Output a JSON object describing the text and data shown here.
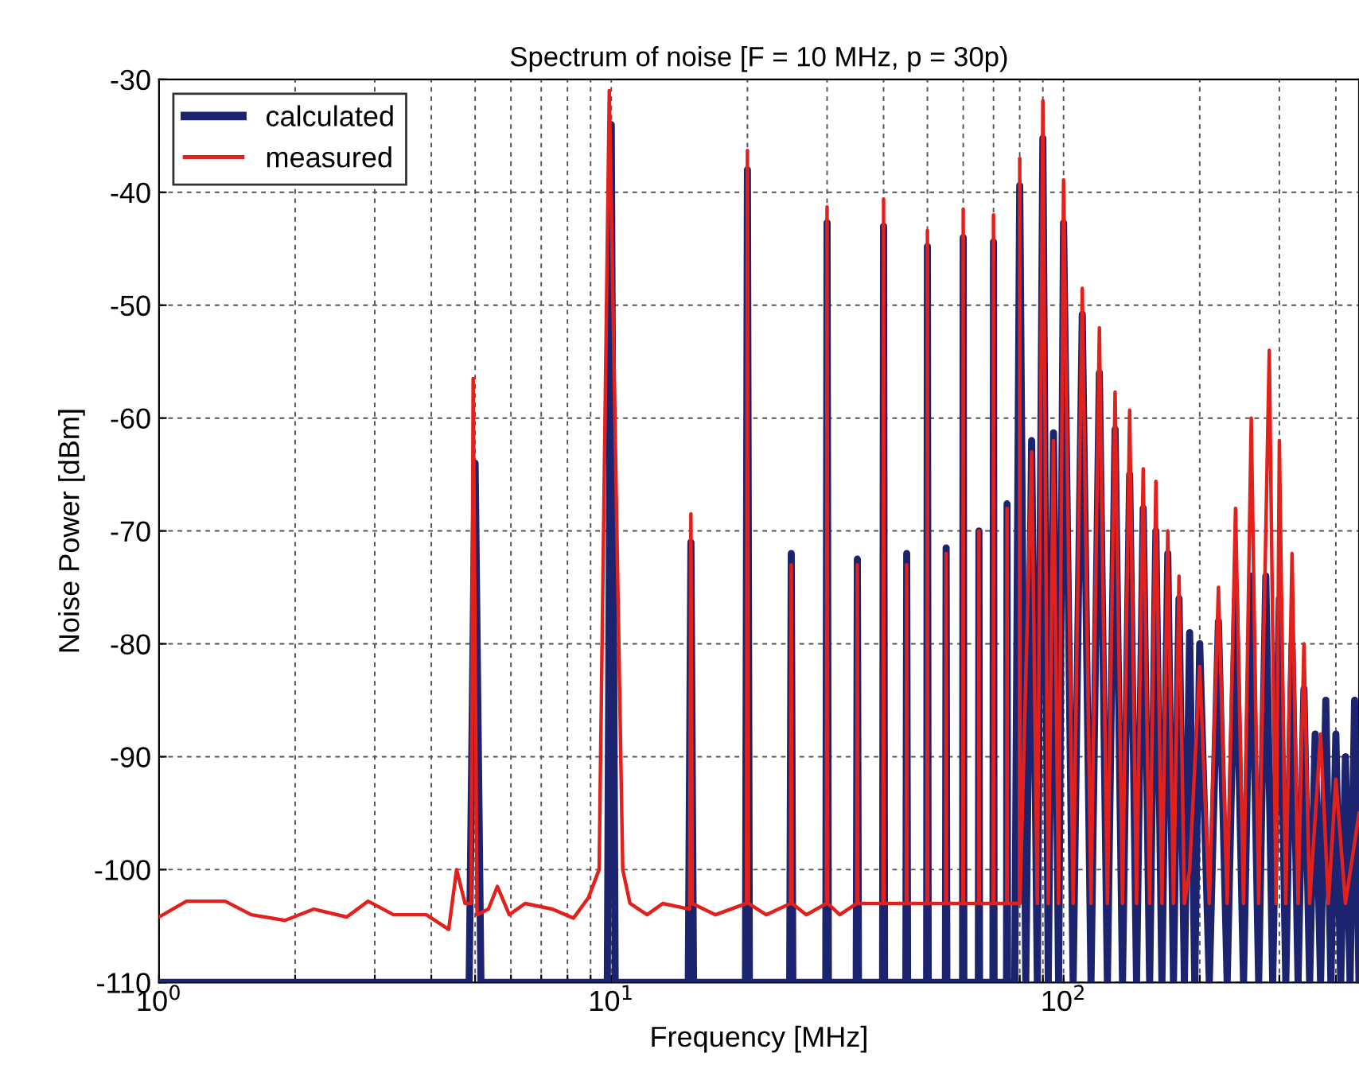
{
  "chart_data": {
    "type": "line",
    "title": "Spectrum of noise [F = 10 MHz, p = 30p)",
    "xlabel": "Frequency [MHz]",
    "ylabel": "Noise Power [dBm]",
    "log": "x",
    "xlim": [
      1,
      450
    ],
    "ylim": [
      -110,
      -30
    ],
    "xticks": [
      {
        "value": 1,
        "label": "10$^{0}$"
      },
      {
        "value": 2,
        "label": null
      },
      {
        "value": 3,
        "label": null
      },
      {
        "value": 4,
        "label": null
      },
      {
        "value": 5,
        "label": null
      },
      {
        "value": 6,
        "label": null
      },
      {
        "value": 7,
        "label": null
      },
      {
        "value": 8,
        "label": null
      },
      {
        "value": 9,
        "label": null
      },
      {
        "value": 10,
        "label": "10$^{1}$"
      },
      {
        "value": 20,
        "label": null
      },
      {
        "value": 30,
        "label": null
      },
      {
        "value": 40,
        "label": null
      },
      {
        "value": 50,
        "label": null
      },
      {
        "value": 60,
        "label": null
      },
      {
        "value": 70,
        "label": null
      },
      {
        "value": 80,
        "label": null
      },
      {
        "value": 90,
        "label": null
      },
      {
        "value": 100,
        "label": "10$^{2}$"
      },
      {
        "value": 200,
        "label": null
      },
      {
        "value": 300,
        "label": null
      },
      {
        "value": 400,
        "label": null
      }
    ],
    "yticks": [
      -110,
      -100,
      -90,
      -80,
      -70,
      -60,
      -50,
      -40,
      -30
    ],
    "grid": true,
    "legend": "top left",
    "line_style": "solid",
    "marker": "none",
    "series": [
      {
        "name": "calculated",
        "color": "#1c2470",
        "x": [
          1,
          4.85,
          5,
          5.15,
          9.8,
          10,
          10.2,
          14.8,
          15,
          15.2,
          19.8,
          20,
          20.2,
          24.8,
          25,
          25.2,
          29.8,
          30,
          30.2,
          34.8,
          35,
          35.2,
          39.8,
          40,
          40.2,
          44.8,
          45,
          45.2,
          49.8,
          50,
          50.2,
          54.8,
          55,
          55.2,
          59.8,
          60,
          60.2,
          64.8,
          65,
          65.2,
          69.8,
          70,
          70.2,
          74.8,
          75,
          75.2,
          78,
          80,
          82.5,
          85,
          87.5,
          90,
          92.5,
          95,
          97.5,
          100,
          105,
          110,
          115,
          120,
          125,
          130,
          135,
          140,
          145,
          150,
          155,
          160,
          165,
          170,
          175,
          180,
          185,
          190,
          195,
          200,
          210,
          220,
          230,
          240,
          250,
          260,
          270,
          280,
          290,
          300,
          310,
          320,
          330,
          340,
          350,
          360,
          370,
          380,
          390,
          400,
          410,
          420,
          430,
          440,
          450
        ],
        "values": [
          -110,
          -110,
          -64,
          -110,
          -110,
          -34,
          -110,
          -110,
          -71,
          -110,
          -110,
          -38,
          -110,
          -110,
          -72,
          -110,
          -110,
          -42.7,
          -110,
          -110,
          -72.5,
          -110,
          -110,
          -43,
          -110,
          -110,
          -72,
          -110,
          -110,
          -44.8,
          -110,
          -110,
          -71.5,
          -110,
          -110,
          -44,
          -110,
          -110,
          -70,
          -110,
          -110,
          -44.4,
          -110,
          -110,
          -67.6,
          -110,
          -110,
          -39.4,
          -110,
          -62,
          -110,
          -35.2,
          -110,
          -61.3,
          -110,
          -42.7,
          -110,
          -50.8,
          -110,
          -56,
          -110,
          -61,
          -110,
          -65,
          -110,
          -68,
          -110,
          -70,
          -110,
          -72,
          -110,
          -76,
          -110,
          -79,
          -110,
          -80,
          -110,
          -78,
          -110,
          -76,
          -110,
          -74,
          -110,
          -74,
          -110,
          -76,
          -110,
          -80,
          -110,
          -84,
          -110,
          -88,
          -110,
          -85,
          -110,
          -88,
          -110,
          -90,
          -110,
          -85,
          -110
        ]
      },
      {
        "name": "measured",
        "color": "#e3211c",
        "x": [
          1,
          1.15,
          1.4,
          1.6,
          1.9,
          2.2,
          2.6,
          2.9,
          3.3,
          3.9,
          4.37,
          4.55,
          4.75,
          4.9,
          4.95,
          5.05,
          5.35,
          5.6,
          5.95,
          6.45,
          7.4,
          8.25,
          8.9,
          9.4,
          9.9,
          10.6,
          11,
          12,
          13,
          14.9,
          15,
          15.1,
          17,
          19.9,
          20,
          20.1,
          22,
          24.9,
          25,
          25.1,
          27,
          29.9,
          30,
          30.1,
          32,
          34.9,
          35,
          35.1,
          39.9,
          40,
          40.1,
          44.9,
          45,
          45.1,
          49.9,
          50,
          50.1,
          54.9,
          55,
          55.1,
          59.9,
          60,
          60.1,
          64.9,
          65,
          65.1,
          69.9,
          70,
          70.1,
          74.9,
          75,
          75.1,
          79.9,
          80,
          80.1,
          85,
          87.5,
          90,
          92.5,
          95,
          97.5,
          100,
          105,
          110,
          115,
          120,
          125,
          130,
          135,
          140,
          145,
          150,
          155,
          160,
          165,
          170,
          175,
          180,
          185,
          190,
          200,
          210,
          220,
          230,
          240,
          250,
          260,
          270,
          285,
          295,
          300,
          310,
          320,
          330,
          340,
          350,
          370,
          385,
          400,
          420,
          450
        ],
        "values": [
          -104.2,
          -102.8,
          -102.8,
          -104,
          -104.5,
          -103.5,
          -104.2,
          -102.8,
          -104,
          -104,
          -105.3,
          -100,
          -103,
          -103,
          -56.5,
          -104,
          -103.5,
          -101.5,
          -104,
          -103,
          -103.5,
          -104.3,
          -102.5,
          -100,
          -31,
          -100,
          -103,
          -104,
          -103,
          -103.5,
          -68.5,
          -103,
          -104,
          -103,
          -36.3,
          -103,
          -104,
          -103,
          -73,
          -103,
          -104,
          -103,
          -41.3,
          -103,
          -104,
          -103,
          -73,
          -103,
          -103,
          -40.6,
          -103,
          -103,
          -73,
          -103,
          -103,
          -43.4,
          -103,
          -103,
          -72,
          -103,
          -103,
          -41.5,
          -103,
          -103,
          -70,
          -103,
          -103,
          -42,
          -103,
          -103,
          -68,
          -103,
          -103,
          -37,
          -103,
          -63,
          -103,
          -31.9,
          -103,
          -62,
          -103,
          -38.9,
          -103,
          -48.5,
          -103,
          -52,
          -103,
          -57.7,
          -103,
          -59.3,
          -103,
          -64.5,
          -103,
          -65.6,
          -103,
          -70,
          -103,
          -74,
          -103,
          -100,
          -82,
          -103,
          -75,
          -103,
          -68,
          -103,
          -60,
          -103,
          -54,
          -103,
          -62,
          -103,
          -72,
          -103,
          -80,
          -103,
          -88,
          -103,
          -92,
          -103,
          -95
        ]
      }
    ]
  }
}
